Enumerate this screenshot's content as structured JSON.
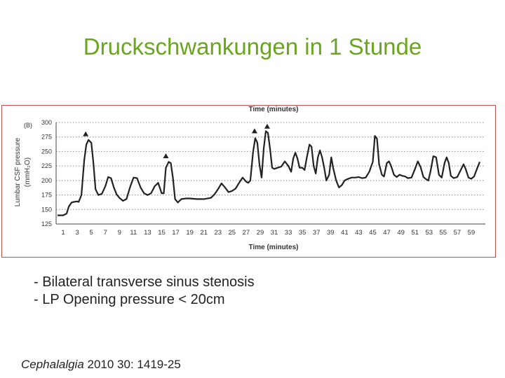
{
  "slide": {
    "title": "Druckschwankungen in 1 Stunde",
    "bullets": [
      "- Bilateral transverse sinus stenosis",
      "- LP Opening pressure < 20cm"
    ],
    "citation": {
      "journal": "Cephalalgia",
      "details": " 2010 30: 1419-25"
    }
  },
  "chart_data": {
    "type": "line",
    "panel_label": "(B)",
    "title": "Time (minutes)",
    "xlabel": "Time (minutes)",
    "ylabel_line1": "Lumbar CSF pressure",
    "ylabel_line2": "(mmH₂O)",
    "xlim": [
      0,
      61
    ],
    "ylim": [
      125,
      300
    ],
    "x_ticks": [
      1,
      3,
      5,
      7,
      9,
      11,
      13,
      15,
      17,
      19,
      21,
      23,
      25,
      27,
      29,
      31,
      33,
      35,
      37,
      39,
      41,
      43,
      45,
      47,
      49,
      51,
      53,
      55,
      57,
      59
    ],
    "y_ticks": [
      125,
      150,
      175,
      200,
      225,
      250,
      275,
      300
    ],
    "grid": "horizontal dotted",
    "marker_color": "#222222",
    "line_color": "#222222",
    "markers": [
      {
        "x": 4.2,
        "y": 280
      },
      {
        "x": 15.6,
        "y": 242
      },
      {
        "x": 28.2,
        "y": 285
      },
      {
        "x": 30.0,
        "y": 293
      }
    ],
    "series": [
      {
        "points": [
          [
            0.2,
            140
          ],
          [
            1.0,
            140
          ],
          [
            1.5,
            143
          ],
          [
            1.8,
            155
          ],
          [
            2.2,
            162
          ],
          [
            2.5,
            163
          ],
          [
            3.0,
            164
          ],
          [
            3.2,
            163
          ],
          [
            3.6,
            175
          ],
          [
            4.0,
            235
          ],
          [
            4.3,
            262
          ],
          [
            4.6,
            270
          ],
          [
            5.0,
            265
          ],
          [
            5.3,
            230
          ],
          [
            5.6,
            185
          ],
          [
            6.0,
            175
          ],
          [
            6.5,
            177
          ],
          [
            7.0,
            190
          ],
          [
            7.4,
            206
          ],
          [
            7.8,
            204
          ],
          [
            8.2,
            188
          ],
          [
            8.6,
            176
          ],
          [
            9.0,
            170
          ],
          [
            9.5,
            165
          ],
          [
            10.0,
            168
          ],
          [
            10.5,
            188
          ],
          [
            11.0,
            205
          ],
          [
            11.5,
            204
          ],
          [
            12.0,
            188
          ],
          [
            12.5,
            178
          ],
          [
            13.0,
            175
          ],
          [
            13.5,
            178
          ],
          [
            14.0,
            190
          ],
          [
            14.5,
            196
          ],
          [
            15.0,
            178
          ],
          [
            15.3,
            178
          ],
          [
            15.6,
            222
          ],
          [
            16.0,
            232
          ],
          [
            16.3,
            230
          ],
          [
            16.6,
            205
          ],
          [
            16.9,
            168
          ],
          [
            17.3,
            162
          ],
          [
            17.8,
            168
          ],
          [
            18.5,
            169
          ],
          [
            19.0,
            169
          ],
          [
            20.0,
            168
          ],
          [
            21.0,
            168
          ],
          [
            22.0,
            170
          ],
          [
            22.5,
            176
          ],
          [
            23.0,
            185
          ],
          [
            23.5,
            195
          ],
          [
            24.0,
            188
          ],
          [
            24.5,
            180
          ],
          [
            25.0,
            182
          ],
          [
            25.5,
            186
          ],
          [
            26.0,
            196
          ],
          [
            26.5,
            205
          ],
          [
            27.0,
            198
          ],
          [
            27.3,
            196
          ],
          [
            27.6,
            200
          ],
          [
            27.8,
            225
          ],
          [
            28.0,
            250
          ],
          [
            28.3,
            273
          ],
          [
            28.6,
            265
          ],
          [
            28.9,
            228
          ],
          [
            29.2,
            205
          ],
          [
            29.5,
            255
          ],
          [
            29.8,
            285
          ],
          [
            30.1,
            282
          ],
          [
            30.4,
            255
          ],
          [
            30.7,
            222
          ],
          [
            31.0,
            220
          ],
          [
            31.5,
            222
          ],
          [
            32.0,
            224
          ],
          [
            32.5,
            233
          ],
          [
            33.0,
            225
          ],
          [
            33.4,
            215
          ],
          [
            33.7,
            238
          ],
          [
            34.0,
            248
          ],
          [
            34.3,
            238
          ],
          [
            34.6,
            222
          ],
          [
            35.0,
            222
          ],
          [
            35.3,
            218
          ],
          [
            35.6,
            238
          ],
          [
            36.0,
            262
          ],
          [
            36.3,
            258
          ],
          [
            36.6,
            225
          ],
          [
            36.9,
            212
          ],
          [
            37.2,
            240
          ],
          [
            37.5,
            252
          ],
          [
            37.8,
            240
          ],
          [
            38.1,
            222
          ],
          [
            38.4,
            200
          ],
          [
            38.8,
            210
          ],
          [
            39.1,
            240
          ],
          [
            39.4,
            220
          ],
          [
            39.8,
            200
          ],
          [
            40.2,
            188
          ],
          [
            40.6,
            192
          ],
          [
            41.0,
            200
          ],
          [
            41.5,
            203
          ],
          [
            42.0,
            205
          ],
          [
            42.5,
            205
          ],
          [
            43.0,
            206
          ],
          [
            43.5,
            204
          ],
          [
            44.0,
            205
          ],
          [
            44.5,
            215
          ],
          [
            45.0,
            232
          ],
          [
            45.3,
            277
          ],
          [
            45.6,
            272
          ],
          [
            45.9,
            228
          ],
          [
            46.3,
            210
          ],
          [
            46.6,
            207
          ],
          [
            47.0,
            230
          ],
          [
            47.3,
            233
          ],
          [
            47.6,
            225
          ],
          [
            48.0,
            210
          ],
          [
            48.4,
            206
          ],
          [
            48.8,
            210
          ],
          [
            49.2,
            208
          ],
          [
            49.6,
            207
          ],
          [
            50.0,
            204
          ],
          [
            50.5,
            205
          ],
          [
            51.0,
            220
          ],
          [
            51.4,
            233
          ],
          [
            51.8,
            223
          ],
          [
            52.2,
            206
          ],
          [
            52.6,
            202
          ],
          [
            52.9,
            200
          ],
          [
            53.2,
            215
          ],
          [
            53.6,
            242
          ],
          [
            54.0,
            240
          ],
          [
            54.4,
            210
          ],
          [
            54.8,
            205
          ],
          [
            55.2,
            230
          ],
          [
            55.5,
            240
          ],
          [
            55.8,
            230
          ],
          [
            56.1,
            208
          ],
          [
            56.5,
            204
          ],
          [
            57.0,
            206
          ],
          [
            57.5,
            218
          ],
          [
            57.9,
            228
          ],
          [
            58.2,
            220
          ],
          [
            58.6,
            205
          ],
          [
            59.0,
            203
          ],
          [
            59.4,
            207
          ],
          [
            59.8,
            220
          ],
          [
            60.2,
            232
          ]
        ]
      }
    ]
  }
}
